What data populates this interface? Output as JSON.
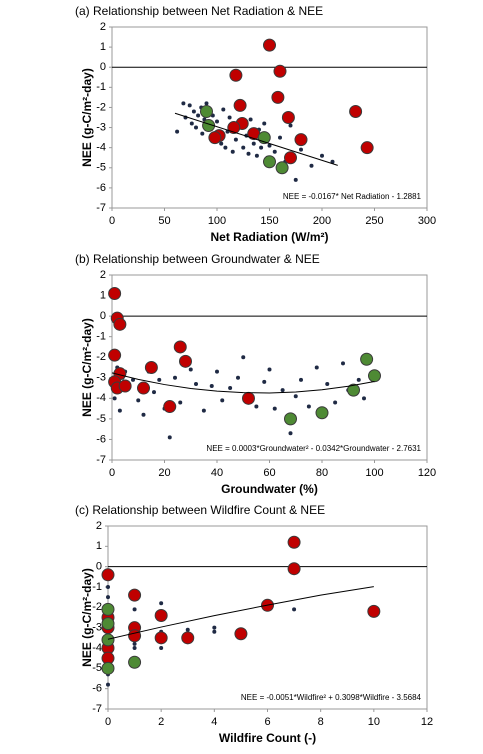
{
  "chart_data": [
    {
      "type": "scatter",
      "title": "(a) Relationship between Net Radiation & NEE",
      "x_label": "Net Radiation (W/m²)",
      "y_label": "NEE (g-C/m²-day)",
      "annotation": "NEE = -0.0167* Net Radiation - 1.2881",
      "xlim": [
        0,
        300
      ],
      "xticks": [
        0,
        50,
        100,
        150,
        200,
        250,
        300
      ],
      "ylim": [
        -7,
        2
      ],
      "yticks": [
        -7,
        -6,
        -5,
        -4,
        -3,
        -2,
        -1,
        0,
        1,
        2
      ],
      "series": [
        {
          "color": "#1f2a44",
          "x": [
            62,
            68,
            70,
            74,
            76,
            78,
            80,
            82,
            85,
            86,
            88,
            90,
            94,
            96,
            100,
            104,
            106,
            108,
            110,
            112,
            115,
            118,
            120,
            125,
            128,
            130,
            132,
            135,
            138,
            140,
            142,
            145,
            148,
            150,
            155,
            160,
            165,
            170,
            175,
            180,
            190,
            200,
            210
          ],
          "values": [
            -3.2,
            -1.8,
            -2.5,
            -1.9,
            -2.8,
            -2.2,
            -3.0,
            -2.4,
            -2.0,
            -3.3,
            -2.6,
            -1.8,
            -3.0,
            -2.4,
            -2.7,
            -3.8,
            -2.1,
            -4.0,
            -3.2,
            -2.5,
            -4.2,
            -3.6,
            -2.9,
            -4.0,
            -3.4,
            -4.3,
            -2.6,
            -3.8,
            -4.4,
            -3.1,
            -4.0,
            -2.8,
            -4.5,
            -3.9,
            -4.2,
            -3.5,
            -4.7,
            -2.9,
            -5.6,
            -4.1,
            -4.9,
            -4.4,
            -4.7
          ]
        },
        {
          "color": "#c00000",
          "x": [
            150,
            118,
            160,
            158,
            122,
            168,
            232,
            243,
            124,
            116,
            102,
            98,
            135,
            180,
            170
          ],
          "values": [
            1.1,
            -0.4,
            -0.2,
            -1.5,
            -1.9,
            -2.5,
            -2.2,
            -4.0,
            -2.8,
            -3.0,
            -3.4,
            -3.5,
            -3.3,
            -3.6,
            -4.5
          ]
        },
        {
          "color": "#4e8a34",
          "x": [
            90,
            92,
            145,
            150,
            162
          ],
          "values": [
            -2.2,
            -2.9,
            -3.5,
            -4.7,
            -5.0
          ]
        },
        {
          "type": "line",
          "color": "#000000",
          "x": [
            60,
            215
          ],
          "values": [
            -2.29,
            -4.88
          ]
        }
      ]
    },
    {
      "type": "scatter",
      "title": "(b) Relationship between Groundwater & NEE",
      "x_label": "Groundwater (%)",
      "y_label": "NEE (g-C/m²-day)",
      "annotation": "NEE = 0.0003*Groundwater² - 0.0342*Groundwater - 2.7631",
      "xlim": [
        0,
        120
      ],
      "xticks": [
        0,
        20,
        40,
        60,
        80,
        100,
        120
      ],
      "ylim": [
        -7,
        2
      ],
      "yticks": [
        -7,
        -6,
        -5,
        -4,
        -3,
        -2,
        -1,
        0,
        1,
        2
      ],
      "series": [
        {
          "color": "#1f2a44",
          "x": [
            1,
            2,
            3,
            4,
            5,
            6,
            8,
            10,
            12,
            14,
            16,
            18,
            20,
            22,
            24,
            26,
            30,
            32,
            35,
            38,
            40,
            42,
            45,
            48,
            50,
            55,
            58,
            60,
            62,
            65,
            68,
            70,
            72,
            75,
            78,
            82,
            85,
            88,
            90,
            94,
            96
          ],
          "values": [
            -4.0,
            -2.5,
            -4.6,
            -3.0,
            -2.7,
            -3.3,
            -3.1,
            -4.1,
            -4.8,
            -2.7,
            -3.7,
            -3.1,
            -4.5,
            -5.9,
            -3.0,
            -4.2,
            -2.6,
            -3.3,
            -4.6,
            -3.4,
            -2.7,
            -4.1,
            -3.5,
            -3.0,
            -2.0,
            -4.4,
            -3.2,
            -2.6,
            -4.5,
            -3.6,
            -5.7,
            -3.9,
            -3.1,
            -4.4,
            -2.5,
            -3.3,
            -4.2,
            -2.3,
            -3.6,
            -3.1,
            -4.0
          ]
        },
        {
          "color": "#c00000",
          "x": [
            1,
            2,
            3,
            1,
            3,
            1,
            2,
            5,
            15,
            26,
            28,
            12,
            22,
            52
          ],
          "values": [
            1.1,
            -0.1,
            -0.4,
            -1.9,
            -2.8,
            -3.2,
            -3.5,
            -3.4,
            -2.5,
            -1.5,
            -2.2,
            -3.5,
            -4.4,
            -4.0
          ]
        },
        {
          "color": "#4e8a34",
          "x": [
            97,
            100,
            92,
            80,
            68
          ],
          "values": [
            -2.1,
            -2.9,
            -3.6,
            -4.7,
            -5.0
          ]
        },
        {
          "type": "line",
          "color": "#000000",
          "x": [
            0,
            10,
            20,
            30,
            40,
            50,
            60,
            70,
            80,
            90,
            100
          ],
          "values": [
            -2.76,
            -3.08,
            -3.33,
            -3.52,
            -3.65,
            -3.72,
            -3.74,
            -3.69,
            -3.58,
            -3.41,
            -3.18
          ]
        }
      ]
    },
    {
      "type": "scatter",
      "title": "(c) Relationship between Wildfire Count & NEE",
      "x_label": "Wildfire Count (-)",
      "y_label": "NEE (g-C/m²-day)",
      "annotation": "NEE = -0.0051*Wildfire² + 0.3098*Wildfire - 3.5684",
      "xlim": [
        0,
        12
      ],
      "xticks": [
        0,
        2,
        4,
        6,
        8,
        10,
        12
      ],
      "ylim": [
        -7,
        2
      ],
      "yticks": [
        -7,
        -6,
        -5,
        -4,
        -3,
        -2,
        -1,
        0,
        1,
        2
      ],
      "series": [
        {
          "color": "#1f2a44",
          "x": [
            0,
            0,
            0,
            0,
            0,
            0,
            0,
            0,
            0,
            0,
            1,
            1,
            1,
            1,
            2,
            2,
            2,
            3,
            4,
            4,
            7
          ],
          "values": [
            -1.0,
            -1.5,
            -2.4,
            -3.2,
            -3.8,
            -4.2,
            -4.8,
            -5.3,
            -5.8,
            -4.6,
            -2.1,
            -3.1,
            -3.8,
            -4.0,
            -1.8,
            -3.2,
            -4.0,
            -3.1,
            -3.0,
            -3.2,
            -2.1
          ]
        },
        {
          "color": "#c00000",
          "x": [
            7,
            7,
            0,
            1,
            0,
            0,
            1,
            2,
            2,
            3,
            5,
            6,
            10,
            0,
            0,
            1
          ],
          "values": [
            1.2,
            -0.1,
            -0.4,
            -1.4,
            -2.5,
            -3.0,
            -3.0,
            -2.4,
            -3.5,
            -3.5,
            -3.3,
            -1.9,
            -2.2,
            -4.0,
            -4.5,
            -3.4
          ]
        },
        {
          "color": "#4e8a34",
          "x": [
            0,
            0,
            0,
            0,
            1
          ],
          "values": [
            -2.1,
            -2.8,
            -3.6,
            -5.0,
            -4.7
          ]
        },
        {
          "type": "line",
          "color": "#000000",
          "x": [
            0,
            2,
            4,
            6,
            8,
            10
          ],
          "values": [
            -3.57,
            -2.97,
            -2.41,
            -1.89,
            -1.4,
            -0.98
          ]
        }
      ]
    }
  ]
}
